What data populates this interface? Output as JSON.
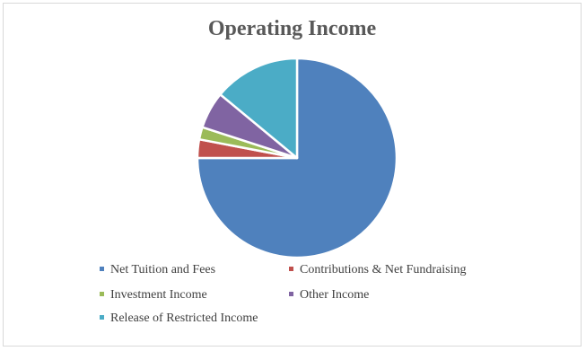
{
  "chart_data": {
    "type": "pie",
    "title": "Operating Income",
    "slices": [
      {
        "label": "Net Tuition and Fees",
        "value": 75.0,
        "color": "#4f81bd"
      },
      {
        "label": "Contributions & Net Fundraising",
        "value": 3.0,
        "color": "#c0504d"
      },
      {
        "label": "Investment Income",
        "value": 2.0,
        "color": "#9bbb59"
      },
      {
        "label": "Other Income",
        "value": 6.0,
        "color": "#8064a2"
      },
      {
        "label": "Release of Restricted Income",
        "value": 14.0,
        "color": "#4bacc6"
      }
    ],
    "legend_position": "bottom"
  }
}
